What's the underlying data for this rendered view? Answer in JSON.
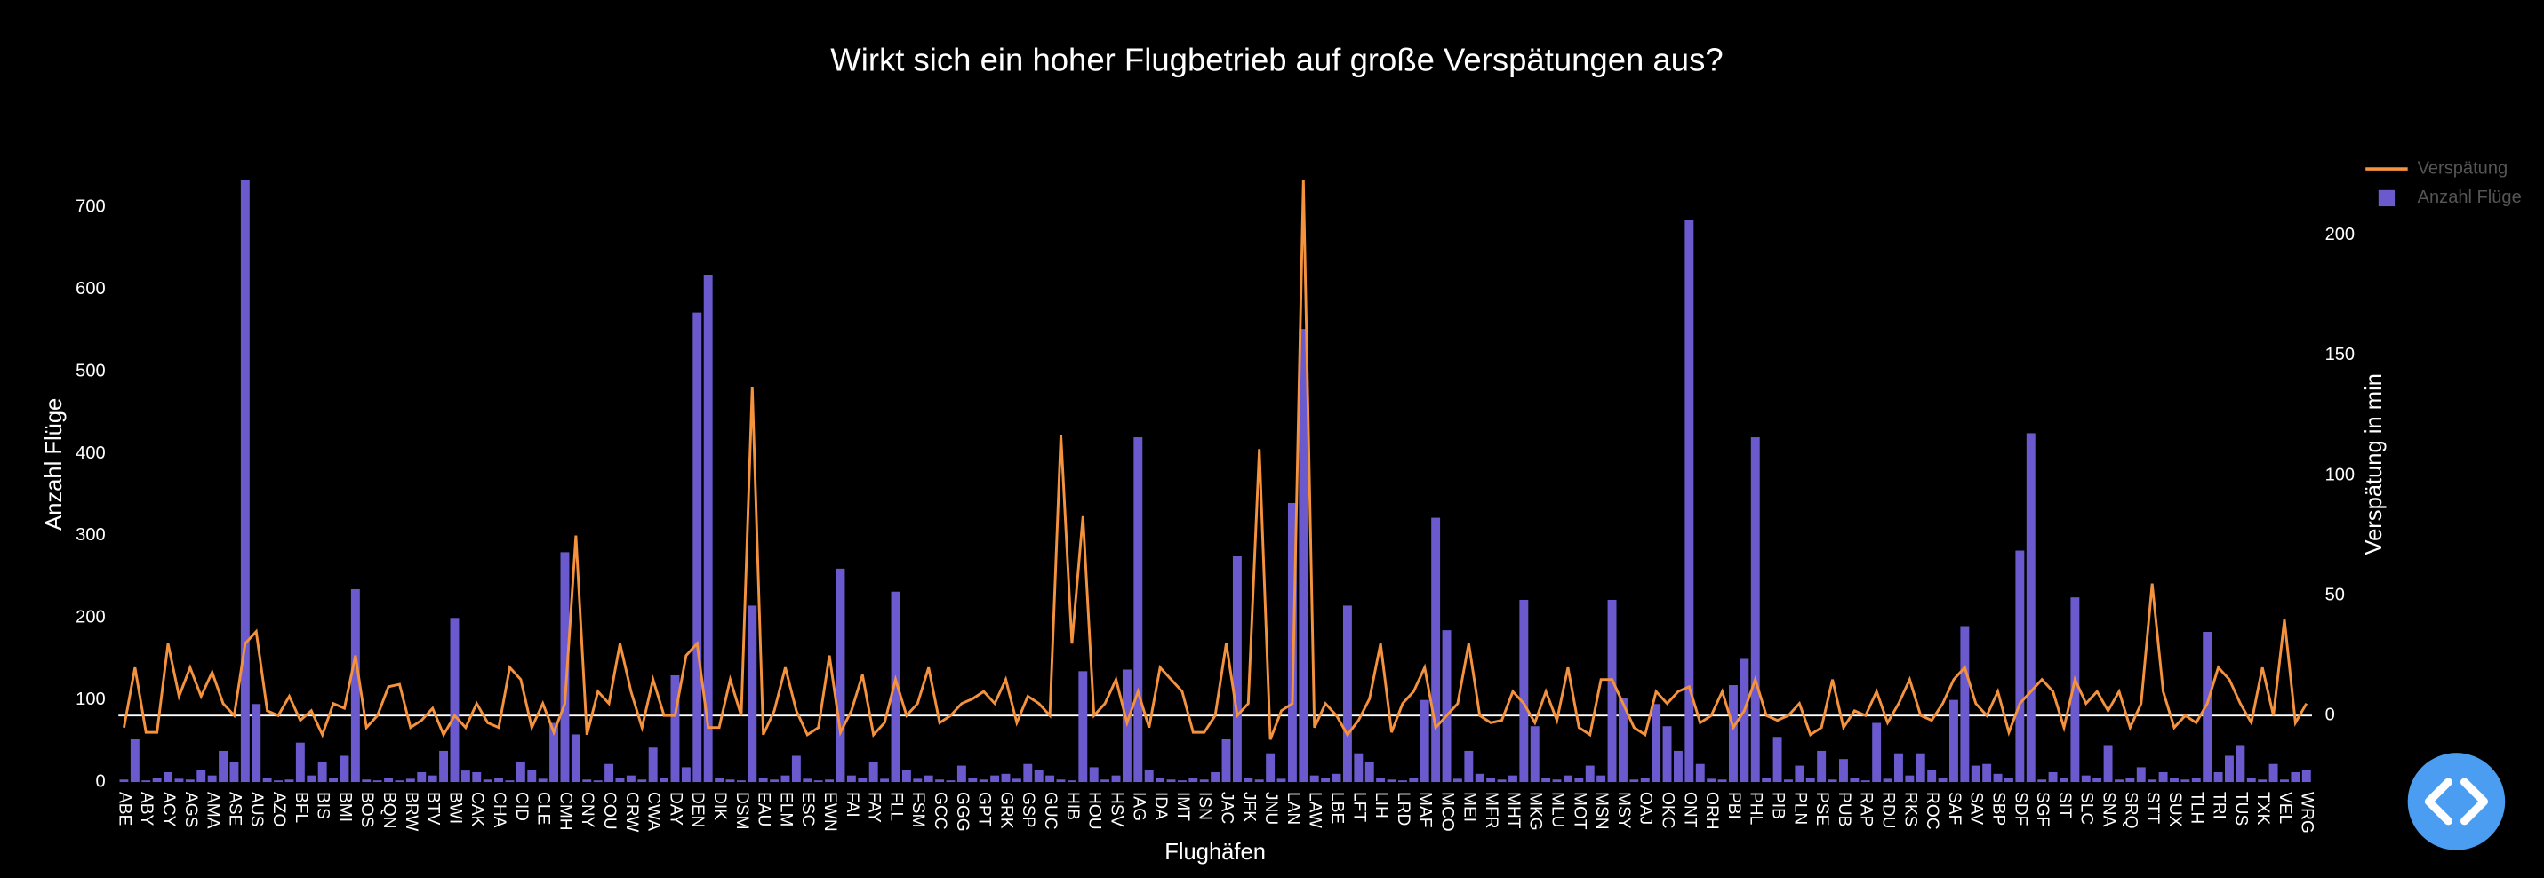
{
  "chart_data": {
    "type": "bar",
    "title": "Wirkt sich ein hoher Flugbetrieb auf große Verspätungen aus?",
    "x_label": "Flughäfen",
    "y_label": "Anzahl Flüge",
    "y2_label": "Verspätung in min",
    "categories": [
      "ABE",
      null,
      "ABY",
      null,
      "ACY",
      null,
      "AGS",
      null,
      "AMA",
      null,
      "ASE",
      null,
      "AUS",
      null,
      "AZO",
      null,
      "BFL",
      null,
      "BIS",
      null,
      "BMI",
      null,
      "BOS",
      null,
      "BQN",
      null,
      "BRW",
      null,
      "BTV",
      null,
      "BWI",
      null,
      "CAK",
      null,
      "CHA",
      null,
      "CID",
      null,
      "CLE",
      null,
      "CMH",
      null,
      "CNY",
      null,
      "COU",
      null,
      "CRW",
      null,
      "CWA",
      null,
      "DAY",
      null,
      "DEN",
      null,
      "DIK",
      null,
      "DSM",
      null,
      "EAU",
      null,
      "ELM",
      null,
      "ESC",
      null,
      "EWN",
      null,
      "FAI",
      null,
      "FAY",
      null,
      "FLL",
      null,
      "FSM",
      null,
      "GCC",
      null,
      "GGG",
      null,
      "GPT",
      null,
      "GRK",
      null,
      "GSP",
      null,
      "GUC",
      null,
      "HIB",
      null,
      "HOU",
      null,
      "HSV",
      null,
      "IAG",
      null,
      "IDA",
      null,
      "IMT",
      null,
      "ISN",
      null,
      "JAC",
      null,
      "JFK",
      null,
      "JNU",
      null,
      "LAN",
      null,
      "LAW",
      null,
      "LBE",
      null,
      "LFT",
      null,
      "LIH",
      null,
      "LRD",
      null,
      "MAF",
      null,
      "MCO",
      null,
      "MEI",
      null,
      "MFR",
      null,
      "MHT",
      null,
      "MKG",
      null,
      "MLU",
      null,
      "MOT",
      null,
      "MSN",
      null,
      "MSY",
      null,
      "OAJ",
      null,
      "OKC",
      null,
      "ONT",
      null,
      "ORH",
      null,
      "PBI",
      null,
      "PHL",
      null,
      "PIB",
      null,
      "PLN",
      null,
      "PSE",
      null,
      "PUB",
      null,
      "RAP",
      null,
      "RDU",
      null,
      "RKS",
      null,
      "ROC",
      null,
      "SAF",
      null,
      "SAV",
      null,
      "SBP",
      null,
      "SDF",
      null,
      "SGF",
      null,
      "SIT",
      null,
      "SLC",
      null,
      "SNA",
      null,
      "SRQ",
      null,
      "STT",
      null,
      "SUX",
      null,
      "TLH",
      null,
      "TRI",
      null,
      "TUS",
      null,
      "TXK",
      null,
      "VEL",
      null,
      "WRG"
    ],
    "series": [
      {
        "name": "Verspätung",
        "type": "line",
        "axis": "y2",
        "color": "#f5923e",
        "values": [
          -5,
          20,
          -7,
          -7,
          30,
          8,
          20,
          8,
          18,
          5,
          0,
          30,
          35,
          2,
          0,
          8,
          -2,
          2,
          -8,
          5,
          3,
          25,
          -5,
          0,
          12,
          13,
          -5,
          -2,
          3,
          -8,
          0,
          -5,
          5,
          -3,
          -5,
          20,
          15,
          -5,
          5,
          -7,
          5,
          75,
          -8,
          10,
          5,
          30,
          10,
          -5,
          15,
          0,
          0,
          25,
          30,
          -5,
          -5,
          15,
          0,
          137,
          -8,
          2,
          20,
          2,
          -8,
          -5,
          25,
          -7,
          2,
          17,
          -8,
          -3,
          15,
          0,
          5,
          20,
          -3,
          0,
          5,
          7,
          10,
          5,
          15,
          -3,
          8,
          5,
          0,
          117,
          30,
          83,
          0,
          5,
          15,
          -3,
          10,
          -5,
          20,
          15,
          10,
          -7,
          -7,
          0,
          30,
          0,
          5,
          111,
          -10,
          2,
          5,
          223,
          -5,
          5,
          0,
          -8,
          -2,
          7,
          30,
          -7,
          5,
          10,
          20,
          -5,
          0,
          5,
          30,
          0,
          -3,
          -2,
          10,
          5,
          -3,
          10,
          -2,
          20,
          -5,
          -8,
          15,
          15,
          5,
          -5,
          -8,
          10,
          5,
          10,
          12,
          -3,
          0,
          10,
          -5,
          2,
          15,
          0,
          -2,
          0,
          5,
          -8,
          -5,
          15,
          -5,
          2,
          0,
          10,
          -3,
          5,
          15,
          0,
          -2,
          5,
          15,
          20,
          5,
          0,
          10,
          -7,
          5,
          10,
          15,
          10,
          -5,
          15,
          5,
          10,
          2,
          10,
          -5,
          5,
          55,
          10,
          -5,
          0,
          -3,
          5,
          20,
          15,
          5,
          -3,
          20,
          0,
          40,
          -3,
          5
        ]
      },
      {
        "name": "Anzahl Flüge",
        "type": "bar",
        "color": "#6a5acd",
        "values": [
          3,
          52,
          2,
          5,
          12,
          4,
          3,
          15,
          8,
          38,
          25,
          733,
          95,
          5,
          2,
          3,
          48,
          8,
          25,
          5,
          32,
          235,
          3,
          2,
          5,
          2,
          4,
          12,
          8,
          38,
          200,
          14,
          12,
          3,
          5,
          2,
          25,
          15,
          4,
          72,
          280,
          58,
          3,
          2,
          22,
          5,
          8,
          3,
          42,
          5,
          130,
          18,
          572,
          618,
          5,
          3,
          2,
          215,
          5,
          3,
          8,
          32,
          4,
          2,
          3,
          260,
          8,
          5,
          25,
          4,
          232,
          15,
          4,
          8,
          3,
          2,
          20,
          5,
          3,
          8,
          10,
          4,
          22,
          15,
          8,
          3,
          2,
          135,
          18,
          3,
          8,
          137,
          420,
          15,
          5,
          3,
          2,
          5,
          3,
          12,
          52,
          275,
          5,
          3,
          35,
          4,
          340,
          552,
          8,
          5,
          10,
          215,
          35,
          25,
          5,
          3,
          2,
          5,
          100,
          322,
          185,
          4,
          38,
          10,
          5,
          3,
          8,
          222,
          68,
          5,
          3,
          8,
          5,
          20,
          8,
          222,
          102,
          3,
          5,
          95,
          68,
          38,
          685,
          22,
          4,
          3,
          118,
          150,
          420,
          5,
          55,
          3,
          20,
          5,
          38,
          3,
          28,
          5,
          2,
          72,
          4,
          35,
          8,
          35,
          15,
          5,
          100,
          190,
          20,
          22,
          10,
          5,
          282,
          425,
          3,
          12,
          5,
          225,
          8,
          5,
          45,
          3,
          5,
          18,
          3,
          12,
          5,
          3,
          5,
          183,
          12,
          32,
          45,
          5,
          3,
          22,
          3,
          12,
          15
        ]
      }
    ],
    "ylim": [
      0,
      735
    ],
    "yticks": [
      0,
      100,
      200,
      300,
      400,
      500,
      600,
      700
    ],
    "y2lim": [
      -27.7,
      223.6
    ],
    "y2ticks": [
      0,
      50,
      100,
      150,
      200
    ]
  }
}
